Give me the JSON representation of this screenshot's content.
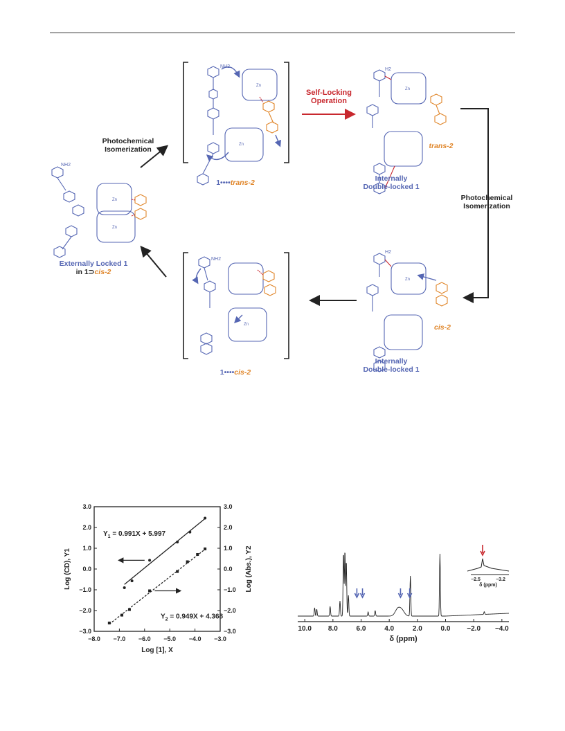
{
  "scheme": {
    "arrow_labels": {
      "photo_top": [
        "Photochemical",
        "Isomerization"
      ],
      "self_locking": [
        "Self-Locking",
        "Operation"
      ],
      "photo_right": [
        "Photochemical",
        "Isomerization"
      ]
    },
    "complex_labels": {
      "top_bracket": {
        "prefix": "1••••",
        "guest": "trans-2"
      },
      "bottom_bracket": {
        "prefix": "1••••",
        "guest": "cis-2"
      },
      "top_right": [
        "Internally",
        "Double-locked 1"
      ],
      "bottom_right": [
        "Internally",
        "Double-locked 1"
      ],
      "left": {
        "line1": "Externally Locked 1",
        "line2_prefix": "in 1⊃",
        "line2_guest": "cis-2"
      }
    },
    "guest_labels": {
      "trans": "trans-2",
      "cis": "cis-2"
    },
    "atom_labels": {
      "nh2": "NH2",
      "zn": "Zn",
      "n": "N",
      "h2": "H2"
    },
    "colors": {
      "host": "#5566b3",
      "guest": "#e0862a",
      "lock": "#c8282e"
    }
  },
  "chart_data": [
    {
      "type": "scatter",
      "xlabel": "Log [1], X",
      "ylabel_left": "Log (CD), Y1",
      "ylabel_right": "Log (Abs.), Y2",
      "xlim": [
        -8.0,
        -3.0
      ],
      "ylim": [
        -3.0,
        3.0
      ],
      "x_ticks": [
        "−8.0",
        "−7.0",
        "−6.0",
        "−5.0",
        "−4.0",
        "−3.0"
      ],
      "y_ticks": [
        "3.0",
        "2.0",
        "1.0",
        "0.0",
        "−1.0",
        "−2.0",
        "−3.0"
      ],
      "series": [
        {
          "name": "Y1",
          "marker": "circle",
          "line": "solid",
          "points": [
            [
              -6.8,
              -0.9
            ],
            [
              -6.5,
              -0.57
            ],
            [
              -5.8,
              0.42
            ],
            [
              -4.7,
              1.3
            ],
            [
              -4.2,
              1.78
            ],
            [
              -3.6,
              2.45
            ]
          ],
          "fit": {
            "slope": 0.991,
            "intercept": 5.997,
            "x_range": [
              -6.8,
              -3.6
            ]
          },
          "equation": "Y1 = 0.991X + 5.997"
        },
        {
          "name": "Y2",
          "marker": "square",
          "line": "dashed",
          "points": [
            [
              -7.4,
              -2.6
            ],
            [
              -6.9,
              -2.22
            ],
            [
              -6.6,
              -1.95
            ],
            [
              -5.8,
              -1.05
            ],
            [
              -4.7,
              -0.12
            ],
            [
              -4.3,
              0.35
            ],
            [
              -3.9,
              0.7
            ],
            [
              -3.6,
              0.97
            ]
          ],
          "fit": {
            "slope": 0.949,
            "intercept": 4.368,
            "x_range": [
              -7.4,
              -3.6
            ]
          },
          "equation": "Y2 = 0.949X + 4.368"
        }
      ],
      "equations": {
        "y1": {
          "lhs": "Y",
          "sub": "1",
          "rhs": " = 0.991X + 5.997"
        },
        "y2": {
          "lhs": "Y",
          "sub": "2",
          "rhs": " = 0.949X + 4.368"
        }
      }
    },
    {
      "type": "line",
      "xlabel": "δ (ppm)",
      "xlim": [
        10.5,
        -4.5
      ],
      "x_reversed": true,
      "x_ticks": [
        "10.0",
        "8.0",
        "6.0",
        "4.0",
        "2.0",
        "0.0",
        "−2.0",
        "−4.0"
      ],
      "peaks_ppm": [
        9.3,
        9.15,
        8.2,
        7.5,
        7.25,
        7.15,
        7.05,
        6.9,
        5.5,
        5.0,
        3.4,
        3.1,
        2.5,
        0.4,
        -2.75
      ],
      "arrows_ppm": [
        6.3,
        5.9,
        3.2,
        2.55
      ],
      "inset": {
        "xlabel": "δ (ppm)",
        "x_ticks": [
          "−2.5",
          "−3.2"
        ],
        "arrow": "red"
      }
    }
  ]
}
